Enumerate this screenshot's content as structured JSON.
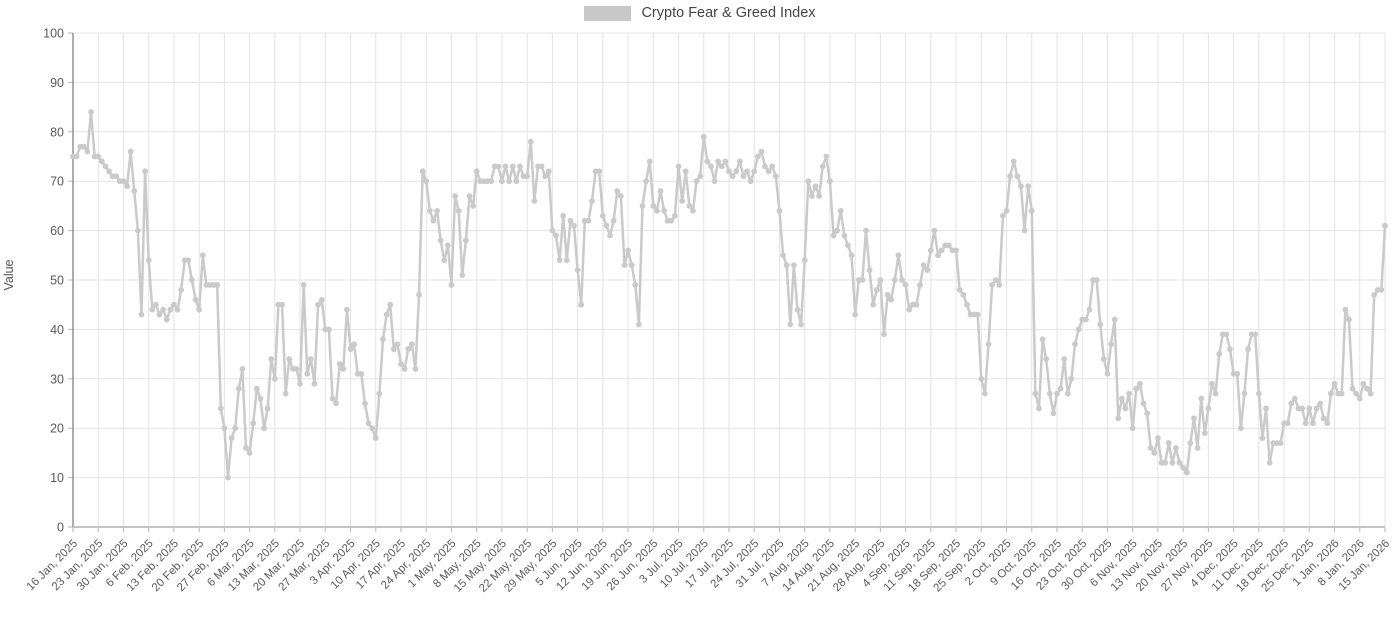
{
  "legend": {
    "label": "Crypto Fear & Greed Index",
    "swatch_color": "#c8c8c8"
  },
  "colors": {
    "series": "#cacaca",
    "grid": "#e3e3e3",
    "axis_left": "#8a8a8a",
    "axis_bottom": "#c4c4c4",
    "tick_mark": "#b5b5b5",
    "tick_text": "#5a5a5a",
    "legend_text": "#444444"
  },
  "chart_data": {
    "type": "line",
    "title": "Crypto Fear & Greed Index",
    "xlabel": "",
    "ylabel": "Value",
    "ylim": [
      0,
      100
    ],
    "grid": true,
    "legend_position": "top-center",
    "marker": "circle",
    "y_ticks": [
      0,
      10,
      20,
      30,
      40,
      50,
      60,
      70,
      80,
      90,
      100
    ],
    "x_start": "16 Jan, 2025",
    "x_end": "15 Jan, 2026",
    "x_tick_every_days": 7,
    "x_tick_labels": [
      "16 Jan, 2025",
      "23 Jan, 2025",
      "30 Jan, 2025",
      "6 Feb, 2025",
      "13 Feb, 2025",
      "20 Feb, 2025",
      "27 Feb, 2025",
      "6 Mar, 2025",
      "13 Mar, 2025",
      "20 Mar, 2025",
      "27 Mar, 2025",
      "3 Apr, 2025",
      "10 Apr, 2025",
      "17 Apr, 2025",
      "24 Apr, 2025",
      "1 May, 2025",
      "8 May, 2025",
      "15 May, 2025",
      "22 May, 2025",
      "29 May, 2025",
      "5 Jun, 2025",
      "12 Jun, 2025",
      "19 Jun, 2025",
      "26 Jun, 2025",
      "3 Jul, 2025",
      "10 Jul, 2025",
      "17 Jul, 2025",
      "24 Jul, 2025",
      "31 Jul, 2025",
      "7 Aug, 2025",
      "14 Aug, 2025",
      "21 Aug, 2025",
      "28 Aug, 2025",
      "4 Sep, 2025",
      "11 Sep, 2025",
      "18 Sep, 2025",
      "25 Sep, 2025",
      "2 Oct, 2025",
      "9 Oct, 2025",
      "16 Oct, 2025",
      "23 Oct, 2025",
      "30 Oct, 2025",
      "6 Nov, 2025",
      "13 Nov, 2025",
      "20 Nov, 2025",
      "27 Nov, 2025",
      "4 Dec, 2025",
      "11 Dec, 2025",
      "18 Dec, 2025",
      "25 Dec, 2025",
      "1 Jan, 2026",
      "8 Jan, 2026",
      "15 Jan, 2026"
    ],
    "series": [
      {
        "name": "Crypto Fear & Greed Index",
        "color": "#cacaca",
        "values": [
          75,
          75,
          77,
          77,
          76,
          84,
          75,
          75,
          74,
          73,
          72,
          71,
          71,
          70,
          70,
          69,
          76,
          68,
          60,
          43,
          72,
          54,
          44,
          45,
          43,
          44,
          42,
          44,
          45,
          44,
          48,
          54,
          54,
          50,
          46,
          44,
          55,
          49,
          49,
          49,
          49,
          24,
          20,
          10,
          18,
          20,
          28,
          32,
          16,
          15,
          21,
          28,
          26,
          20,
          24,
          34,
          30,
          45,
          45,
          27,
          34,
          32,
          32,
          29,
          49,
          31,
          34,
          29,
          45,
          46,
          40,
          40,
          26,
          25,
          33,
          32,
          44,
          36,
          37,
          31,
          31,
          25,
          21,
          20,
          18,
          27,
          38,
          43,
          45,
          36,
          37,
          33,
          32,
          36,
          37,
          32,
          47,
          72,
          70,
          64,
          62,
          64,
          58,
          54,
          57,
          49,
          67,
          64,
          51,
          58,
          67,
          65,
          72,
          70,
          70,
          70,
          70,
          73,
          73,
          70,
          73,
          70,
          73,
          70,
          73,
          71,
          71,
          78,
          66,
          73,
          73,
          71,
          72,
          60,
          59,
          54,
          63,
          54,
          62,
          61,
          52,
          45,
          62,
          62,
          66,
          72,
          72,
          63,
          61,
          59,
          62,
          68,
          67,
          53,
          56,
          53,
          49,
          41,
          65,
          70,
          74,
          65,
          64,
          68,
          64,
          62,
          62,
          63,
          73,
          66,
          72,
          65,
          64,
          70,
          71,
          79,
          74,
          73,
          70,
          74,
          73,
          74,
          72,
          71,
          72,
          74,
          71,
          72,
          70,
          72,
          75,
          76,
          73,
          72,
          73,
          71,
          64,
          55,
          53,
          41,
          53,
          44,
          41,
          54,
          70,
          67,
          69,
          67,
          73,
          75,
          70,
          59,
          60,
          64,
          59,
          57,
          55,
          43,
          50,
          50,
          60,
          52,
          45,
          48,
          50,
          39,
          47,
          46,
          50,
          55,
          50,
          49,
          44,
          45,
          45,
          49,
          53,
          52,
          56,
          60,
          55,
          56,
          57,
          57,
          56,
          56,
          48,
          47,
          45,
          43,
          43,
          43,
          30,
          27,
          37,
          49,
          50,
          49,
          63,
          64,
          71,
          74,
          71,
          69,
          60,
          69,
          64,
          27,
          24,
          38,
          34,
          27,
          23,
          27,
          28,
          34,
          27,
          30,
          37,
          40,
          42,
          42,
          44,
          50,
          50,
          41,
          34,
          31,
          37,
          42,
          22,
          26,
          24,
          27,
          20,
          28,
          29,
          25,
          23,
          16,
          15,
          18,
          13,
          13,
          17,
          13,
          16,
          13,
          12,
          11,
          17,
          22,
          16,
          26,
          19,
          24,
          29,
          27,
          35,
          39,
          39,
          36,
          31,
          31,
          20,
          27,
          36,
          39,
          39,
          27,
          18,
          24,
          13,
          17,
          17,
          17,
          21,
          21,
          25,
          26,
          24,
          24,
          21,
          24,
          21,
          24,
          25,
          22,
          21,
          27,
          29,
          27,
          27,
          44,
          42,
          28,
          27,
          26,
          29,
          28,
          27,
          47,
          48,
          48,
          61
        ]
      }
    ]
  }
}
